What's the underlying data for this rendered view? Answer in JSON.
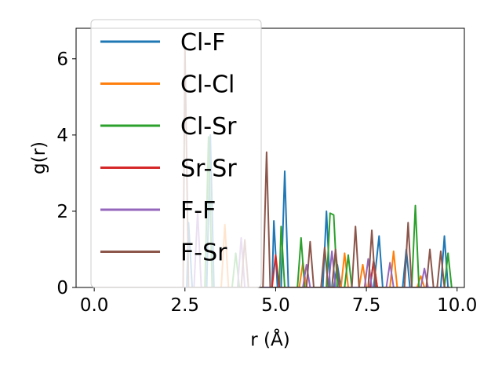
{
  "chart_data": {
    "type": "line",
    "xlabel": "r (Å)",
    "ylabel": "g(r)",
    "xlim": [
      -0.5,
      10.2
    ],
    "ylim": [
      0,
      6.8
    ],
    "xticks": [
      0.0,
      2.5,
      5.0,
      7.5,
      10.0
    ],
    "xtick_labels": [
      "0.0",
      "2.5",
      "5.0",
      "7.5",
      "10.0"
    ],
    "yticks": [
      0,
      2,
      4,
      6
    ],
    "ytick_labels": [
      "0",
      "2",
      "4",
      "6"
    ],
    "grid": false,
    "legend_position": "top-left",
    "series": [
      {
        "name": "Cl-F",
        "color": "#1f77b4",
        "points": [
          [
            0,
            0
          ],
          [
            2.55,
            0
          ],
          [
            2.6,
            1.7
          ],
          [
            2.7,
            0
          ],
          [
            3.1,
            0
          ],
          [
            3.2,
            4.0
          ],
          [
            3.3,
            0
          ],
          [
            4.9,
            0
          ],
          [
            4.95,
            1.75
          ],
          [
            5.05,
            0
          ],
          [
            5.15,
            0
          ],
          [
            5.25,
            3.05
          ],
          [
            5.35,
            0
          ],
          [
            6.3,
            0
          ],
          [
            6.4,
            2.0
          ],
          [
            6.5,
            0
          ],
          [
            6.6,
            0
          ],
          [
            6.7,
            0.6
          ],
          [
            6.8,
            0
          ],
          [
            7.7,
            0
          ],
          [
            7.85,
            1.35
          ],
          [
            7.95,
            0
          ],
          [
            8.5,
            0
          ],
          [
            8.6,
            1.0
          ],
          [
            8.7,
            0
          ],
          [
            9.55,
            0
          ],
          [
            9.65,
            1.35
          ],
          [
            9.75,
            0
          ],
          [
            9.8,
            0
          ]
        ]
      },
      {
        "name": "Cl-Cl",
        "color": "#ff7f0e",
        "points": [
          [
            0,
            0
          ],
          [
            3.5,
            0
          ],
          [
            3.6,
            1.65
          ],
          [
            3.7,
            0
          ],
          [
            5.65,
            0
          ],
          [
            5.75,
            0.65
          ],
          [
            5.85,
            0
          ],
          [
            6.8,
            0
          ],
          [
            6.9,
            0.9
          ],
          [
            7.0,
            0
          ],
          [
            7.3,
            0
          ],
          [
            7.4,
            0.6
          ],
          [
            7.5,
            0
          ],
          [
            8.15,
            0
          ],
          [
            8.25,
            0.95
          ],
          [
            8.35,
            0
          ],
          [
            8.9,
            0
          ],
          [
            9.0,
            0.3
          ],
          [
            9.1,
            0
          ],
          [
            9.8,
            0
          ]
        ]
      },
      {
        "name": "Cl-Sr",
        "color": "#2ca02c",
        "points": [
          [
            0,
            0
          ],
          [
            3.05,
            0
          ],
          [
            3.15,
            3.95
          ],
          [
            3.25,
            0
          ],
          [
            3.8,
            0
          ],
          [
            3.9,
            0.9
          ],
          [
            4.0,
            0
          ],
          [
            5.1,
            0
          ],
          [
            5.15,
            1.6
          ],
          [
            5.25,
            0
          ],
          [
            5.6,
            0
          ],
          [
            5.7,
            1.3
          ],
          [
            5.8,
            0
          ],
          [
            6.4,
            0
          ],
          [
            6.5,
            1.95
          ],
          [
            6.6,
            1.9
          ],
          [
            6.7,
            0
          ],
          [
            6.9,
            0
          ],
          [
            7.0,
            0.85
          ],
          [
            7.1,
            0
          ],
          [
            7.6,
            0
          ],
          [
            7.7,
            0.7
          ],
          [
            7.8,
            0
          ],
          [
            8.75,
            0
          ],
          [
            8.85,
            2.15
          ],
          [
            8.95,
            0
          ],
          [
            9.65,
            0
          ],
          [
            9.75,
            0.9
          ],
          [
            9.85,
            0
          ]
        ]
      },
      {
        "name": "Sr-Sr",
        "color": "#d62728",
        "points": [
          [
            0,
            0
          ],
          [
            4.9,
            0
          ],
          [
            5.0,
            0.85
          ],
          [
            5.1,
            0
          ],
          [
            7.6,
            0
          ],
          [
            7.7,
            0.7
          ],
          [
            7.8,
            0
          ],
          [
            9.8,
            0
          ]
        ]
      },
      {
        "name": "F-F",
        "color": "#9467bd",
        "points": [
          [
            0,
            0
          ],
          [
            2.75,
            0
          ],
          [
            2.85,
            2.0
          ],
          [
            2.95,
            0
          ],
          [
            3.95,
            0
          ],
          [
            4.05,
            1.3
          ],
          [
            4.15,
            0
          ],
          [
            5.75,
            0
          ],
          [
            5.85,
            0.6
          ],
          [
            5.95,
            0
          ],
          [
            6.45,
            0
          ],
          [
            6.55,
            0.95
          ],
          [
            6.65,
            0
          ],
          [
            7.45,
            0
          ],
          [
            7.55,
            0.75
          ],
          [
            7.65,
            0
          ],
          [
            8.05,
            0
          ],
          [
            8.15,
            0.65
          ],
          [
            8.25,
            0
          ],
          [
            9.0,
            0
          ],
          [
            9.1,
            0.5
          ],
          [
            9.2,
            0
          ],
          [
            9.8,
            0
          ]
        ]
      },
      {
        "name": "F-Sr",
        "color": "#8c564b",
        "points": [
          [
            0,
            0
          ],
          [
            2.45,
            0
          ],
          [
            2.5,
            6.3
          ],
          [
            2.6,
            0
          ],
          [
            4.05,
            0
          ],
          [
            4.15,
            1.25
          ],
          [
            4.25,
            0
          ],
          [
            4.65,
            0
          ],
          [
            4.75,
            3.55
          ],
          [
            4.85,
            0
          ],
          [
            5.85,
            0
          ],
          [
            5.95,
            1.2
          ],
          [
            6.05,
            0
          ],
          [
            6.25,
            0
          ],
          [
            6.35,
            1.05
          ],
          [
            6.45,
            0
          ],
          [
            6.55,
            0
          ],
          [
            6.65,
            1.0
          ],
          [
            6.75,
            0
          ],
          [
            7.1,
            0
          ],
          [
            7.2,
            1.6
          ],
          [
            7.3,
            0
          ],
          [
            7.55,
            0
          ],
          [
            7.65,
            1.5
          ],
          [
            7.75,
            0
          ],
          [
            8.55,
            0
          ],
          [
            8.65,
            1.7
          ],
          [
            8.75,
            0
          ],
          [
            9.15,
            0
          ],
          [
            9.25,
            1.0
          ],
          [
            9.35,
            0
          ],
          [
            9.45,
            0
          ],
          [
            9.55,
            0.95
          ],
          [
            9.65,
            0
          ],
          [
            9.8,
            0
          ]
        ]
      }
    ]
  }
}
